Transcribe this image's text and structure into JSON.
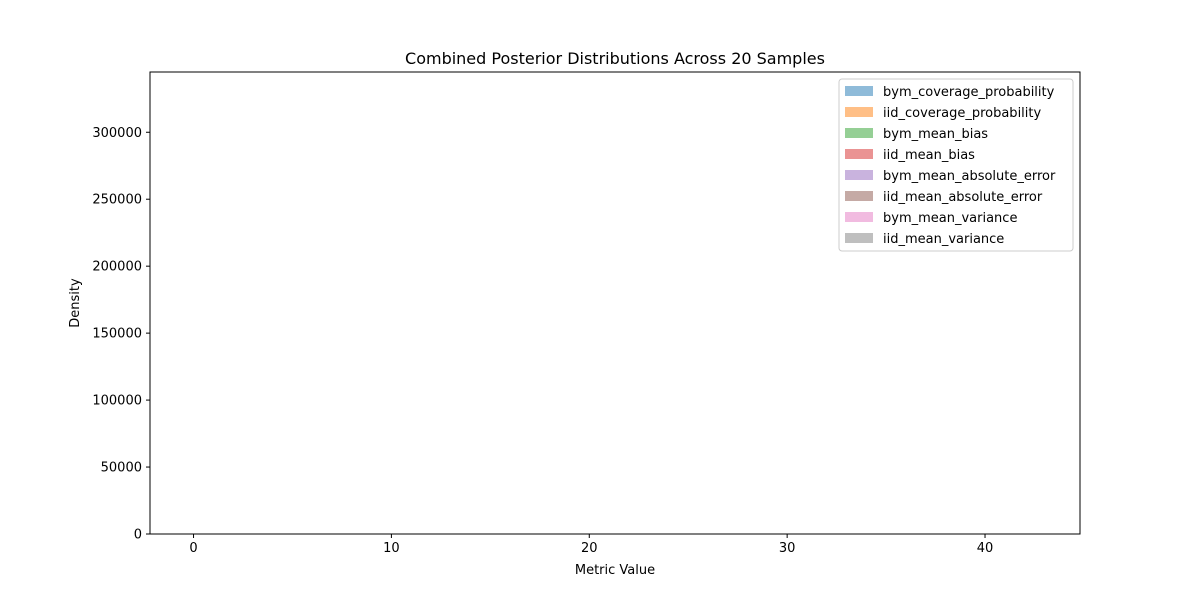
{
  "chart_data": {
    "type": "area",
    "title": "Combined Posterior Distributions Across 20 Samples",
    "xlabel": "Metric Value",
    "ylabel": "Density",
    "xlim": [
      -2.2,
      44.8
    ],
    "ylim": [
      0,
      345000
    ],
    "xticks": [
      0,
      10,
      20,
      30,
      40
    ],
    "yticks": [
      0,
      50000,
      100000,
      150000,
      200000,
      250000,
      300000
    ],
    "grid": false,
    "legend_position": "top-right",
    "series": [
      {
        "name": "bym_coverage_probability",
        "color": "#1f77b4"
      },
      {
        "name": "iid_coverage_probability",
        "color": "#ff7f0e"
      },
      {
        "name": "bym_mean_bias",
        "color": "#2ca02c"
      },
      {
        "name": "iid_mean_bias",
        "color": "#d62728"
      },
      {
        "name": "bym_mean_absolute_error",
        "color": "#9467bd"
      },
      {
        "name": "iid_mean_absolute_error",
        "color": "#8c564b"
      },
      {
        "name": "bym_mean_variance",
        "color": "#e377c2"
      },
      {
        "name": "iid_mean_variance",
        "color": "#7f7f7f"
      }
    ]
  }
}
